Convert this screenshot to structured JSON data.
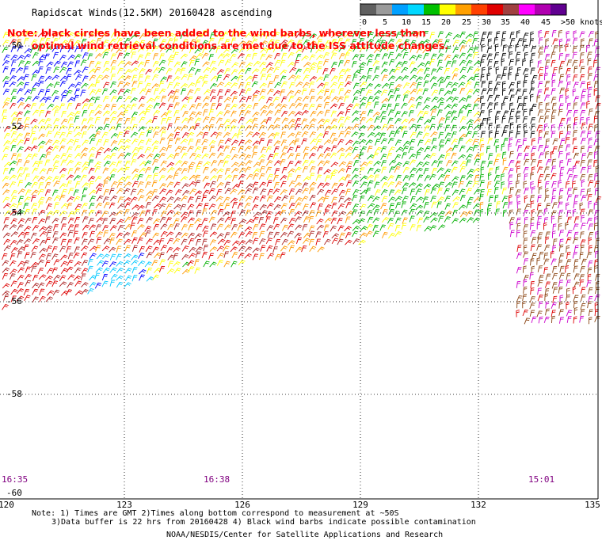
{
  "header": {
    "title": "Rapidscat Winds(12.5KM) 20160428 ascending"
  },
  "note": {
    "line1": "Note: black circles have been added to the wind barbs, wherever less than",
    "line2": "optimal wind retrieval conditions are met due to the ISS attitude changes."
  },
  "legend": {
    "labels": [
      "0",
      "5",
      "10",
      "15",
      "20",
      "25",
      "30",
      "35",
      "40",
      "45",
      ">50 knots"
    ],
    "colors": [
      "#606060",
      "#9a9a9a",
      "#00a0ff",
      "#00d8ff",
      "#00c000",
      "#ffff00",
      "#ffa000",
      "#ff4000",
      "#e00000",
      "#a04040",
      "#ff00ff",
      "#b000b0",
      "#600090"
    ]
  },
  "axes": {
    "lat_labels": [
      "-50",
      "-52",
      "-54",
      "-56",
      "-58",
      "-60"
    ],
    "lon_labels": [
      "120",
      "123",
      "126",
      "129",
      "132",
      "135"
    ]
  },
  "pass_times": [
    "16:35",
    "16:38",
    "15:01"
  ],
  "footer": {
    "note1": "Note: 1) Times are GMT 2)Times along bottom correspond to measurement at ~50S",
    "note2": "3)Data buffer is 22 hrs from 20160428 4) Black wind barbs indicate possible contamination",
    "credit": "NOAA/NESDIS/Center for Satellite Applications and Research"
  },
  "wind_colors": {
    "yellow": "#ffff00",
    "orange": "#ff9900",
    "red": "#dd0000",
    "darkred": "#aa2020",
    "green": "#00b000",
    "blue": "#0000ff",
    "cyan": "#00c8ff",
    "brown": "#8b4513",
    "magenta": "#cc00cc",
    "black": "#000000"
  }
}
